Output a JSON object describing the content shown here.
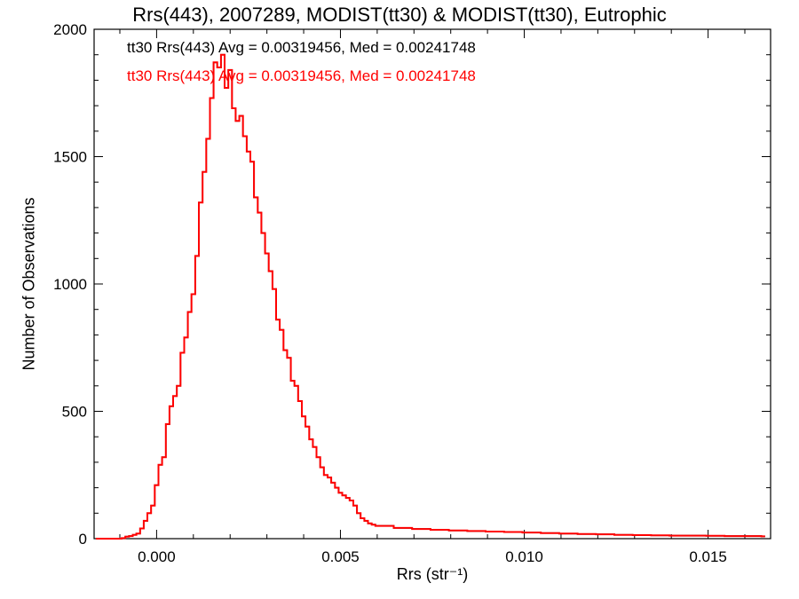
{
  "chart_data": {
    "type": "line",
    "title": "Rrs(443), 2007289, MODIST(tt30) & MODIST(tt30), Eutrophic",
    "xlabel": "Rrs (str⁻¹)",
    "ylabel": "Number of Observations",
    "xlim": [
      -0.0017,
      0.0167
    ],
    "ylim": [
      0,
      2000
    ],
    "x_ticks": [
      0.0,
      0.005,
      0.01,
      0.015
    ],
    "x_tick_labels": [
      "0.000",
      "0.005",
      "0.010",
      "0.015"
    ],
    "y_ticks": [
      0,
      500,
      1000,
      1500,
      2000
    ],
    "y_tick_labels": [
      "0",
      "500",
      "1000",
      "1500",
      "2000"
    ],
    "grid": false,
    "legend_position": "top-left",
    "bin_width": 0.0001,
    "series": [
      {
        "name": "tt30 Rrs(443) Avg = 0.00319456, Med = 0.00241748",
        "color": "#000000",
        "x": [
          -0.0016,
          -0.0015,
          -0.0014,
          -0.0013,
          -0.0012,
          -0.0011,
          -0.001,
          -0.0009,
          -0.0008,
          -0.0007,
          -0.0006,
          -0.0005,
          -0.0004,
          -0.0003,
          -0.0002,
          -0.0001,
          0.0,
          0.0001,
          0.0002,
          0.0003,
          0.0004,
          0.0005,
          0.0006,
          0.0007,
          0.0008,
          0.0009,
          0.001,
          0.0011,
          0.0012,
          0.0013,
          0.0014,
          0.0015,
          0.0016,
          0.0017,
          0.0018,
          0.0019,
          0.002,
          0.0021,
          0.0022,
          0.0023,
          0.0024,
          0.0025,
          0.0026,
          0.0027,
          0.0028,
          0.0029,
          0.003,
          0.0031,
          0.0032,
          0.0033,
          0.0034,
          0.0035,
          0.0036,
          0.0037,
          0.0038,
          0.0039,
          0.004,
          0.0041,
          0.0042,
          0.0043,
          0.0044,
          0.0045,
          0.0046,
          0.0047,
          0.0048,
          0.0049,
          0.005,
          0.0051,
          0.0052,
          0.0053,
          0.0054,
          0.0055,
          0.0056,
          0.0057,
          0.0058,
          0.0059,
          0.006,
          0.0065,
          0.007,
          0.0075,
          0.008,
          0.0085,
          0.009,
          0.0095,
          0.01,
          0.0105,
          0.011,
          0.0115,
          0.012,
          0.0125,
          0.013,
          0.0135,
          0.014,
          0.0145,
          0.015,
          0.0155,
          0.016,
          0.0165
        ],
        "values": [
          0,
          0,
          0,
          0,
          0,
          0,
          0,
          2,
          8,
          10,
          15,
          20,
          40,
          70,
          100,
          130,
          210,
          290,
          320,
          450,
          520,
          560,
          600,
          730,
          790,
          890,
          960,
          1110,
          1320,
          1440,
          1570,
          1730,
          1870,
          1850,
          1900,
          1770,
          1840,
          1690,
          1640,
          1660,
          1580,
          1520,
          1480,
          1340,
          1280,
          1200,
          1120,
          1050,
          980,
          860,
          820,
          740,
          710,
          620,
          600,
          540,
          480,
          440,
          390,
          360,
          320,
          280,
          250,
          240,
          220,
          200,
          180,
          170,
          160,
          150,
          130,
          100,
          80,
          70,
          60,
          55,
          50,
          42,
          38,
          35,
          32,
          30,
          28,
          26,
          24,
          22,
          20,
          18,
          17,
          15,
          14,
          13,
          12,
          12,
          11,
          10,
          10,
          9
        ]
      },
      {
        "name": "tt30 Rrs(443) Avg = 0.00319456, Med = 0.00241748",
        "color": "#ff0000",
        "x": [
          -0.0016,
          -0.0015,
          -0.0014,
          -0.0013,
          -0.0012,
          -0.0011,
          -0.001,
          -0.0009,
          -0.0008,
          -0.0007,
          -0.0006,
          -0.0005,
          -0.0004,
          -0.0003,
          -0.0002,
          -0.0001,
          0.0,
          0.0001,
          0.0002,
          0.0003,
          0.0004,
          0.0005,
          0.0006,
          0.0007,
          0.0008,
          0.0009,
          0.001,
          0.0011,
          0.0012,
          0.0013,
          0.0014,
          0.0015,
          0.0016,
          0.0017,
          0.0018,
          0.0019,
          0.002,
          0.0021,
          0.0022,
          0.0023,
          0.0024,
          0.0025,
          0.0026,
          0.0027,
          0.0028,
          0.0029,
          0.003,
          0.0031,
          0.0032,
          0.0033,
          0.0034,
          0.0035,
          0.0036,
          0.0037,
          0.0038,
          0.0039,
          0.004,
          0.0041,
          0.0042,
          0.0043,
          0.0044,
          0.0045,
          0.0046,
          0.0047,
          0.0048,
          0.0049,
          0.005,
          0.0051,
          0.0052,
          0.0053,
          0.0054,
          0.0055,
          0.0056,
          0.0057,
          0.0058,
          0.0059,
          0.006,
          0.0065,
          0.007,
          0.0075,
          0.008,
          0.0085,
          0.009,
          0.0095,
          0.01,
          0.0105,
          0.011,
          0.0115,
          0.012,
          0.0125,
          0.013,
          0.0135,
          0.014,
          0.0145,
          0.015,
          0.0155,
          0.016,
          0.0165
        ],
        "values": [
          0,
          0,
          0,
          0,
          0,
          0,
          0,
          2,
          8,
          10,
          15,
          20,
          40,
          70,
          100,
          130,
          210,
          290,
          320,
          450,
          520,
          560,
          600,
          730,
          790,
          890,
          960,
          1110,
          1320,
          1440,
          1570,
          1730,
          1870,
          1850,
          1900,
          1770,
          1840,
          1690,
          1640,
          1660,
          1580,
          1520,
          1480,
          1340,
          1280,
          1200,
          1120,
          1050,
          980,
          860,
          820,
          740,
          710,
          620,
          600,
          540,
          480,
          440,
          390,
          360,
          320,
          280,
          250,
          240,
          220,
          200,
          180,
          170,
          160,
          150,
          130,
          100,
          80,
          70,
          60,
          55,
          50,
          42,
          38,
          35,
          32,
          30,
          28,
          26,
          24,
          22,
          20,
          18,
          17,
          15,
          14,
          13,
          12,
          12,
          11,
          10,
          10,
          9
        ]
      }
    ]
  }
}
